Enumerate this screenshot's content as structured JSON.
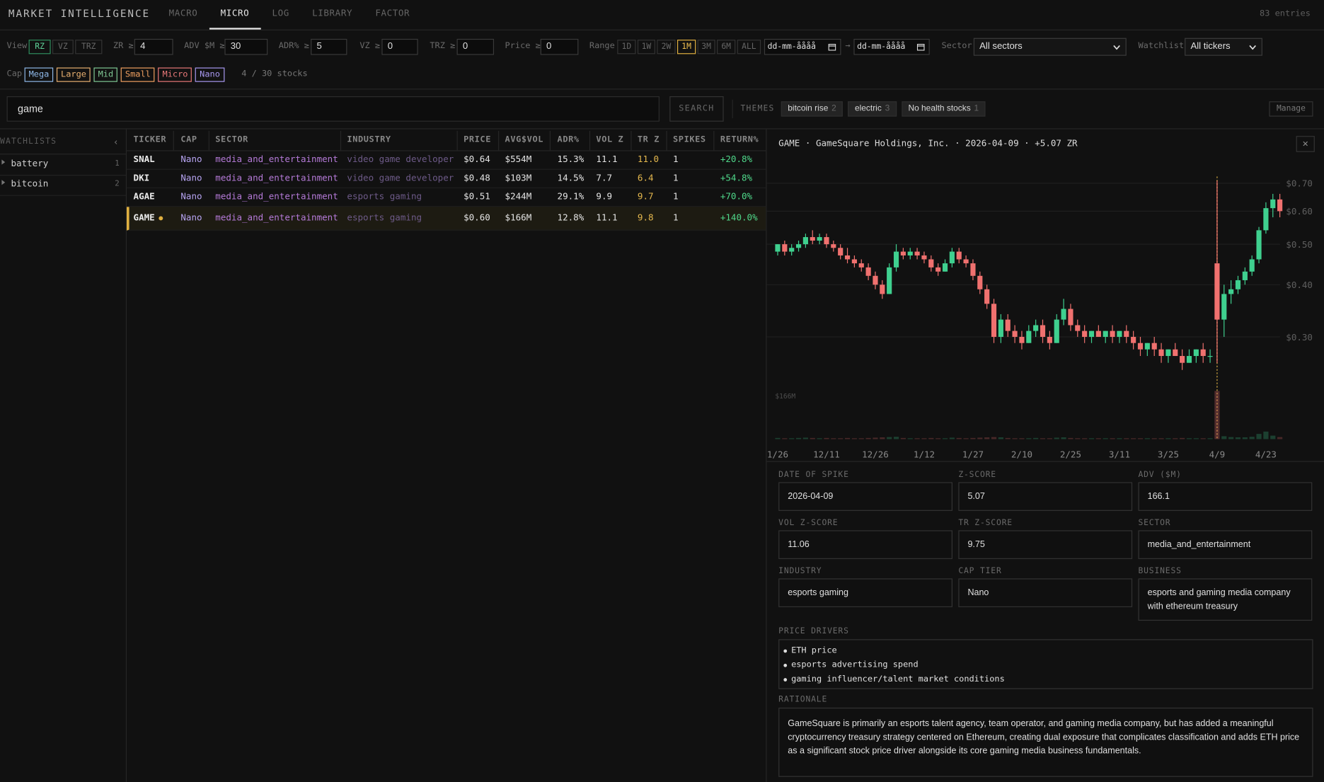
{
  "header": {
    "brand": "MARKET INTELLIGENCE",
    "tabs": [
      "MACRO",
      "MICRO",
      "LOG",
      "LIBRARY",
      "FACTOR"
    ],
    "active_tab": 1,
    "entries": "83 entries"
  },
  "filters": {
    "view_label": "View",
    "views": [
      "RZ",
      "VZ",
      "TRZ"
    ],
    "active_view": 0,
    "zr_label": "ZR ≥",
    "zr": "4",
    "adv_label": "ADV $M ≥",
    "adv": "30",
    "adr_label": "ADR% ≥",
    "adr": "5",
    "vz_label": "VZ ≥",
    "vz": "0",
    "trz_label": "TRZ ≥",
    "trz": "0",
    "price_label": "Price ≥",
    "price": "0",
    "range_label": "Range",
    "ranges": [
      "1D",
      "1W",
      "2W",
      "1M",
      "3M",
      "6M",
      "ALL"
    ],
    "active_range": 3,
    "date_from": "dd-mm-åååå",
    "date_sep": "→",
    "date_to": "dd-mm-åååå",
    "sector_label": "Sector",
    "sector": "All sectors",
    "watchlist_label": "Watchlist",
    "watchlist": "All tickers",
    "cap_label": "Cap",
    "caps": [
      {
        "name": "Mega",
        "color": "#8fb8e8"
      },
      {
        "name": "Large",
        "color": "#e8b070"
      },
      {
        "name": "Mid",
        "color": "#7fc894"
      },
      {
        "name": "Small",
        "color": "#f0a060"
      },
      {
        "name": "Micro",
        "color": "#e87878"
      },
      {
        "name": "Nano",
        "color": "#a898f0"
      }
    ],
    "count": "4 / 30 stocks"
  },
  "search": {
    "query": "game",
    "button": "SEARCH",
    "themes_label": "THEMES",
    "themes": [
      {
        "name": "bitcoin rise",
        "count": "2"
      },
      {
        "name": "electric",
        "count": "3"
      },
      {
        "name": "No health stocks",
        "count": "1"
      }
    ],
    "manage": "Manage"
  },
  "watchlists": {
    "title": "WATCHLISTS",
    "items": [
      {
        "name": "battery",
        "count": "1"
      },
      {
        "name": "bitcoin",
        "count": "2"
      }
    ]
  },
  "table": {
    "headers": [
      "TICKER",
      "CAP",
      "SECTOR",
      "INDUSTRY",
      "PRICE",
      "AVG$VOL",
      "ADR%",
      "VOL Z",
      "TR Z",
      "SPIKES",
      "RETURN%"
    ],
    "rows": [
      [
        "SNAL",
        "Nano",
        "media_and_entertainment",
        "video game developer",
        "$0.64",
        "$554M",
        "15.3%",
        "11.1",
        "11.0",
        "1",
        "+20.8%"
      ],
      [
        "DKI",
        "Nano",
        "media_and_entertainment",
        "video game developer",
        "$0.48",
        "$103M",
        "14.5%",
        "7.7",
        "6.4",
        "1",
        "+54.8%"
      ],
      [
        "AGAE",
        "Nano",
        "media_and_entertainment",
        "esports gaming",
        "$0.51",
        "$244M",
        "29.1%",
        "9.9",
        "9.7",
        "1",
        "+70.0%"
      ],
      [
        "GAME",
        "Nano",
        "media_and_entertainment",
        "esports gaming",
        "$0.60",
        "$166M",
        "12.8%",
        "11.1",
        "9.8",
        "1",
        "+140.0%"
      ]
    ],
    "selected_row": 3
  },
  "detail": {
    "title": "GAME · GameSquare Holdings, Inc. · 2026-04-09 · +5.07 ZR",
    "chart_data": {
      "type": "candlestick",
      "log_scale": true,
      "grid": true,
      "up_color": "#3fd08f",
      "down_color": "#f0716f",
      "ylim": [
        0.23,
        0.74
      ],
      "yticks": [
        {
          "value": 0.7,
          "label": "$0.70"
        },
        {
          "value": 0.6,
          "label": "$0.60"
        },
        {
          "value": 0.5,
          "label": "$0.50"
        },
        {
          "value": 0.4,
          "label": "$0.40"
        },
        {
          "value": 0.3,
          "label": "$0.30"
        }
      ],
      "xticks": [
        {
          "value": 0,
          "label": "1/26"
        },
        {
          "value": 7,
          "label": "12/11"
        },
        {
          "value": 14,
          "label": "12/26"
        },
        {
          "value": 21,
          "label": "1/12"
        },
        {
          "value": 28,
          "label": "1/27"
        },
        {
          "value": 35,
          "label": "2/10"
        },
        {
          "value": 42,
          "label": "2/25"
        },
        {
          "value": 49,
          "label": "3/11"
        },
        {
          "value": 56,
          "label": "3/25"
        },
        {
          "value": 63,
          "label": "4/9"
        },
        {
          "value": 70,
          "label": "4/23"
        }
      ],
      "open": [
        0.48,
        0.5,
        0.48,
        0.49,
        0.5,
        0.52,
        0.51,
        0.52,
        0.5,
        0.49,
        0.47,
        0.46,
        0.45,
        0.44,
        0.42,
        0.4,
        0.38,
        0.44,
        0.48,
        0.47,
        0.48,
        0.47,
        0.46,
        0.44,
        0.43,
        0.45,
        0.48,
        0.46,
        0.45,
        0.42,
        0.39,
        0.36,
        0.3,
        0.33,
        0.31,
        0.3,
        0.29,
        0.31,
        0.32,
        0.3,
        0.29,
        0.33,
        0.35,
        0.32,
        0.31,
        0.3,
        0.31,
        0.3,
        0.31,
        0.3,
        0.31,
        0.3,
        0.29,
        0.28,
        0.29,
        0.28,
        0.27,
        0.28,
        0.27,
        0.26,
        0.27,
        0.28,
        0.27,
        0.45,
        0.33,
        0.38,
        0.39,
        0.41,
        0.43,
        0.46,
        0.54,
        0.61,
        0.64
      ],
      "high": [
        0.5,
        0.51,
        0.5,
        0.51,
        0.53,
        0.54,
        0.53,
        0.53,
        0.51,
        0.5,
        0.49,
        0.47,
        0.46,
        0.45,
        0.43,
        0.41,
        0.45,
        0.5,
        0.49,
        0.49,
        0.49,
        0.48,
        0.47,
        0.45,
        0.46,
        0.49,
        0.49,
        0.47,
        0.46,
        0.43,
        0.4,
        0.37,
        0.34,
        0.34,
        0.32,
        0.31,
        0.32,
        0.33,
        0.33,
        0.31,
        0.34,
        0.37,
        0.36,
        0.33,
        0.32,
        0.31,
        0.32,
        0.31,
        0.32,
        0.31,
        0.32,
        0.31,
        0.3,
        0.29,
        0.3,
        0.29,
        0.28,
        0.29,
        0.28,
        0.28,
        0.28,
        0.29,
        0.28,
        0.71,
        0.4,
        0.41,
        0.42,
        0.44,
        0.47,
        0.55,
        0.63,
        0.66,
        0.66
      ],
      "low": [
        0.47,
        0.47,
        0.47,
        0.48,
        0.49,
        0.5,
        0.5,
        0.49,
        0.48,
        0.46,
        0.45,
        0.44,
        0.43,
        0.41,
        0.39,
        0.37,
        0.38,
        0.43,
        0.46,
        0.46,
        0.46,
        0.45,
        0.43,
        0.42,
        0.43,
        0.44,
        0.45,
        0.44,
        0.41,
        0.38,
        0.35,
        0.29,
        0.29,
        0.3,
        0.29,
        0.28,
        0.29,
        0.3,
        0.29,
        0.28,
        0.29,
        0.32,
        0.31,
        0.3,
        0.29,
        0.29,
        0.3,
        0.29,
        0.29,
        0.29,
        0.29,
        0.28,
        0.27,
        0.27,
        0.27,
        0.26,
        0.26,
        0.27,
        0.25,
        0.26,
        0.26,
        0.26,
        0.26,
        0.26,
        0.3,
        0.36,
        0.38,
        0.4,
        0.42,
        0.45,
        0.53,
        0.58,
        0.58
      ],
      "close": [
        0.5,
        0.48,
        0.49,
        0.5,
        0.52,
        0.51,
        0.52,
        0.5,
        0.49,
        0.47,
        0.46,
        0.45,
        0.44,
        0.42,
        0.4,
        0.38,
        0.44,
        0.48,
        0.47,
        0.48,
        0.47,
        0.46,
        0.44,
        0.43,
        0.45,
        0.48,
        0.46,
        0.45,
        0.42,
        0.39,
        0.36,
        0.3,
        0.33,
        0.31,
        0.3,
        0.29,
        0.31,
        0.32,
        0.3,
        0.29,
        0.33,
        0.35,
        0.32,
        0.31,
        0.3,
        0.31,
        0.3,
        0.31,
        0.3,
        0.31,
        0.3,
        0.29,
        0.28,
        0.29,
        0.28,
        0.27,
        0.28,
        0.27,
        0.26,
        0.27,
        0.28,
        0.27,
        0.27,
        0.33,
        0.38,
        0.39,
        0.41,
        0.43,
        0.46,
        0.54,
        0.61,
        0.64,
        0.6
      ],
      "volume": [
        4,
        3,
        3,
        4,
        5,
        4,
        3,
        4,
        3,
        3,
        4,
        3,
        3,
        4,
        5,
        6,
        7,
        8,
        4,
        3,
        3,
        3,
        4,
        3,
        3,
        5,
        4,
        3,
        4,
        5,
        6,
        7,
        6,
        4,
        3,
        3,
        3,
        4,
        3,
        3,
        5,
        6,
        4,
        3,
        3,
        3,
        3,
        3,
        3,
        3,
        3,
        3,
        3,
        3,
        3,
        3,
        3,
        3,
        4,
        3,
        3,
        3,
        3,
        166,
        10,
        7,
        6,
        6,
        8,
        18,
        26,
        12,
        7
      ],
      "volume_lim": [
        0,
        166
      ],
      "volume_ticks": [
        {
          "value": 166,
          "label": "$166M"
        }
      ]
    },
    "fields": [
      {
        "label": "DATE OF SPIKE",
        "value": "2026-04-09"
      },
      {
        "label": "Z-SCORE",
        "value": "5.07"
      },
      {
        "label": "ADV ($M)",
        "value": "166.1"
      },
      {
        "label": "VOL Z-SCORE",
        "value": "11.06"
      },
      {
        "label": "TR Z-SCORE",
        "value": "9.75"
      },
      {
        "label": "SECTOR",
        "value": "media_and_entertainment"
      },
      {
        "label": "INDUSTRY",
        "value": "esports gaming"
      },
      {
        "label": "CAP TIER",
        "value": "Nano"
      },
      {
        "label": "BUSINESS",
        "value": "esports and gaming media company with ethereum treasury"
      }
    ],
    "price_drivers_label": "PRICE DRIVERS",
    "price_drivers": [
      "ETH price",
      "esports advertising spend",
      "gaming influencer/talent market conditions"
    ],
    "rationale_label": "RATIONALE",
    "rationale": "GameSquare is primarily an esports talent agency, team operator, and gaming media company, but has added a meaningful cryptocurrency treasury strategy centered on Ethereum, creating dual exposure that complicates classification and adds ETH price as a significant stock price driver alongside its core gaming media business fundamentals."
  }
}
